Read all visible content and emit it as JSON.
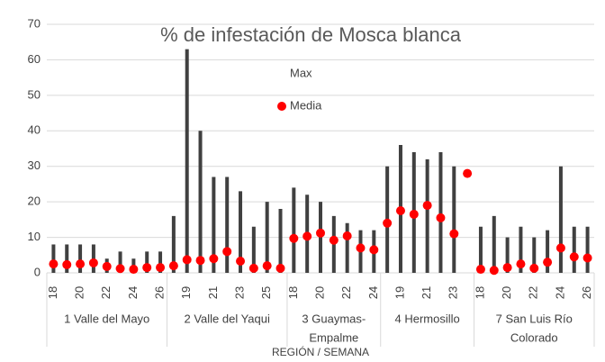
{
  "chart_data": {
    "type": "high-low",
    "title": "% de infestación de Mosca blanca",
    "x_label": "REGIÓN / SEMANA",
    "category_groups": [
      {
        "label": [
          "1 Valle del Mayo"
        ],
        "categories": [
          18,
          null,
          20,
          null,
          22,
          null,
          24,
          null,
          26
        ]
      },
      {
        "label": [
          "2 Valle del Yaqui"
        ],
        "categories": [
          null,
          19,
          null,
          21,
          null,
          23,
          null,
          25,
          null
        ]
      },
      {
        "label": [
          "3 Guaymas-",
          "Empalme"
        ],
        "categories": [
          18,
          null,
          20,
          null,
          22,
          null,
          24
        ]
      },
      {
        "label": [
          "4 Hermosillo"
        ],
        "categories": [
          null,
          19,
          null,
          21,
          null,
          23,
          null
        ]
      },
      {
        "label": [
          "7 San Luis Río",
          "Colorado"
        ],
        "categories": [
          18,
          null,
          20,
          null,
          22,
          null,
          24,
          null,
          26
        ]
      }
    ],
    "series": [
      {
        "name": "Max",
        "color": "#404040",
        "values": [
          8,
          8,
          8,
          8,
          4,
          6,
          4,
          6,
          6,
          16,
          63,
          40,
          27,
          27,
          23,
          13,
          20,
          18,
          24,
          22,
          20,
          16,
          14,
          12,
          12,
          30,
          36,
          34,
          32,
          34,
          30,
          null,
          13,
          16,
          10,
          13,
          10,
          12,
          30,
          13,
          13
        ]
      },
      {
        "name": "Media",
        "color": "#ff0000",
        "values": [
          2.5,
          2.3,
          2.5,
          2.8,
          1.8,
          1.2,
          1,
          1.5,
          1.5,
          2,
          3.7,
          3.5,
          4,
          6,
          3.3,
          1.3,
          2,
          1.3,
          9.7,
          10.3,
          11.2,
          9.2,
          10.4,
          7,
          6.5,
          14,
          17.5,
          16.5,
          19,
          15.5,
          11,
          28,
          1,
          0.7,
          1.5,
          2.5,
          1.3,
          3,
          7,
          4.5,
          4.2
        ]
      }
    ],
    "ylim": [
      0,
      70
    ],
    "yticks": [
      0,
      10,
      20,
      30,
      40,
      50,
      60,
      70
    ],
    "grid": true
  }
}
